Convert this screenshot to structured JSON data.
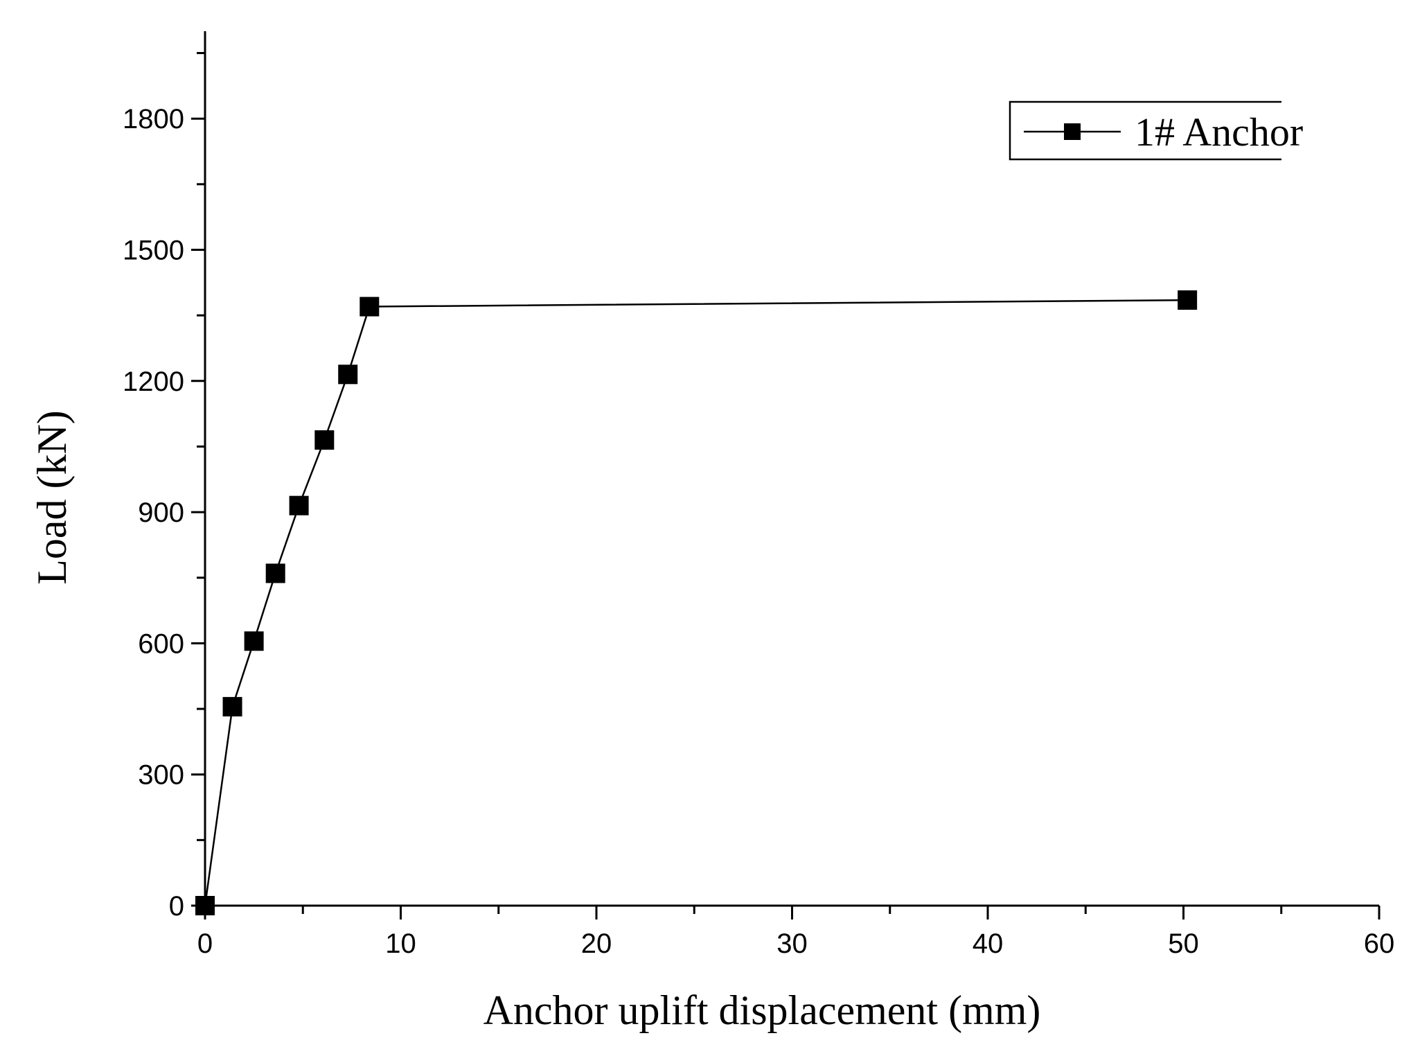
{
  "chart_data": {
    "type": "line",
    "title": "",
    "xlabel": "Anchor uplift displacement (mm)",
    "ylabel": "Load (kN)",
    "xlim": [
      0,
      60
    ],
    "ylim": [
      0,
      2000
    ],
    "x_ticks": [
      0,
      10,
      20,
      30,
      40,
      50,
      60
    ],
    "y_ticks": [
      0,
      300,
      600,
      900,
      1200,
      1500,
      1800
    ],
    "grid": false,
    "legend_position": "top-right",
    "series": [
      {
        "name": "1# Anchor",
        "marker": "square",
        "color": "#000000",
        "x": [
          0,
          1.4,
          2.5,
          3.6,
          4.8,
          6.1,
          7.3,
          8.4,
          50.2
        ],
        "y": [
          0,
          455,
          605,
          760,
          915,
          1065,
          1215,
          1370,
          1385
        ]
      }
    ]
  }
}
